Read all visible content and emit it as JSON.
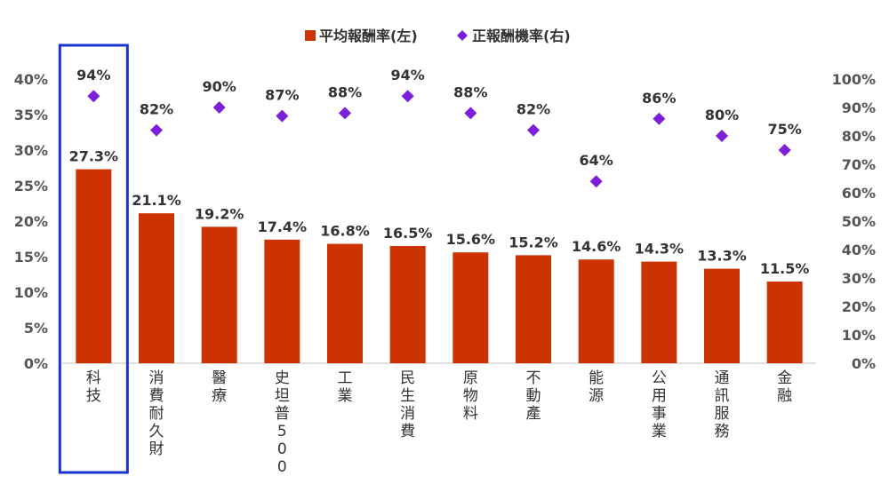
{
  "chart_data": {
    "type": "bar",
    "categories": [
      "科技",
      "消費耐久財",
      "醫療",
      "史坦普500",
      "工業",
      "民生消費",
      "原物料",
      "不動產",
      "能源",
      "公用事業",
      "通訊服務",
      "金融"
    ],
    "series": [
      {
        "name": "平均報酬率(左)",
        "kind": "bar",
        "axis": "left",
        "values": [
          27.3,
          21.1,
          19.2,
          17.4,
          16.8,
          16.5,
          15.6,
          15.2,
          14.6,
          14.3,
          13.3,
          11.5
        ],
        "labels": [
          "27.3%",
          "21.1%",
          "19.2%",
          "17.4%",
          "16.8%",
          "16.5%",
          "15.6%",
          "15.2%",
          "14.6%",
          "14.3%",
          "13.3%",
          "11.5%"
        ],
        "color": "#CC3300"
      },
      {
        "name": "正報酬機率(右)",
        "kind": "scatter",
        "marker": "diamond",
        "axis": "right",
        "values": [
          94,
          82,
          90,
          87,
          88,
          94,
          88,
          82,
          64,
          86,
          80,
          75
        ],
        "labels": [
          "94%",
          "82%",
          "90%",
          "87%",
          "88%",
          "94%",
          "88%",
          "82%",
          "64%",
          "86%",
          "80%",
          "75%"
        ],
        "color": "#7B1FD9"
      }
    ],
    "left_axis": {
      "ylim": [
        0,
        40
      ],
      "ticks": [
        "0%",
        "5%",
        "10%",
        "15%",
        "20%",
        "25%",
        "30%",
        "35%",
        "40%"
      ]
    },
    "right_axis": {
      "ylim": [
        0,
        100
      ],
      "ticks": [
        "0%",
        "10%",
        "20%",
        "30%",
        "40%",
        "50%",
        "60%",
        "70%",
        "80%",
        "90%",
        "100%"
      ]
    },
    "highlight": {
      "category": "科技",
      "color": "#1A33CC"
    },
    "legend": {
      "placement": "top-center"
    },
    "grid": false
  }
}
